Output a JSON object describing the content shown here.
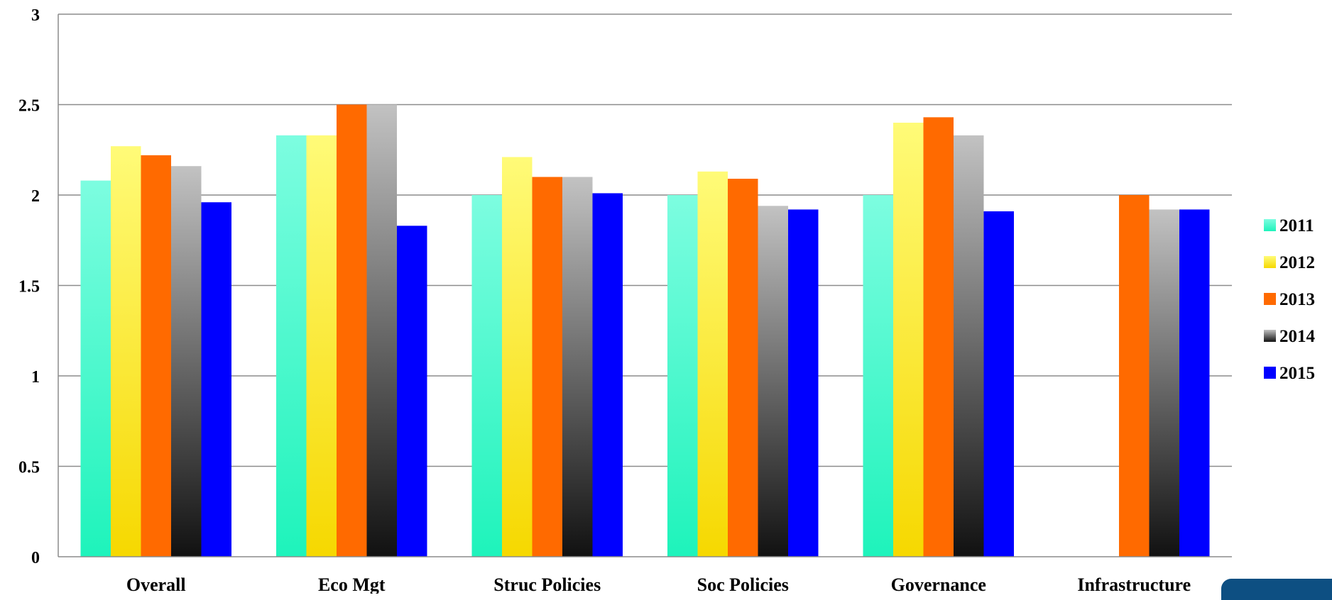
{
  "chart_data": {
    "type": "bar",
    "title": "",
    "xlabel": "",
    "ylabel": "",
    "ylim": [
      0,
      3
    ],
    "yticks": [
      0,
      0.5,
      1,
      1.5,
      2,
      2.5,
      3
    ],
    "ytick_labels": [
      "0",
      "0.5",
      "1",
      "1.5",
      "2",
      "2.5",
      "3"
    ],
    "grid": true,
    "legend_position": "right",
    "categories": [
      "Overall",
      "Eco Mgt",
      "Struc Policies",
      "Soc Policies",
      "Governance",
      "Infrastructure"
    ],
    "series": [
      {
        "name": "2011",
        "values": [
          2.08,
          2.33,
          2.0,
          2.0,
          2.0,
          null
        ]
      },
      {
        "name": "2012",
        "values": [
          2.27,
          2.33,
          2.21,
          2.13,
          2.4,
          null
        ]
      },
      {
        "name": "2013",
        "values": [
          2.22,
          2.5,
          2.1,
          2.09,
          2.43,
          2.0
        ]
      },
      {
        "name": "2014",
        "values": [
          2.16,
          2.5,
          2.1,
          1.94,
          2.33,
          1.92
        ]
      },
      {
        "name": "2015",
        "values": [
          1.96,
          1.83,
          2.01,
          1.92,
          1.91,
          1.92
        ]
      }
    ],
    "series_colors": {
      "2011": [
        "#7dfde0",
        "#1ef3bb"
      ],
      "2012": [
        "#fffb78",
        "#f6d800"
      ],
      "2013": [
        "#ff6a00",
        "#ff6a00"
      ],
      "2014": [
        "#c2c2c2",
        "#111111"
      ],
      "2015": [
        "#0000ff",
        "#0000ff"
      ]
    },
    "gridline_color": "#8c8c8c"
  }
}
